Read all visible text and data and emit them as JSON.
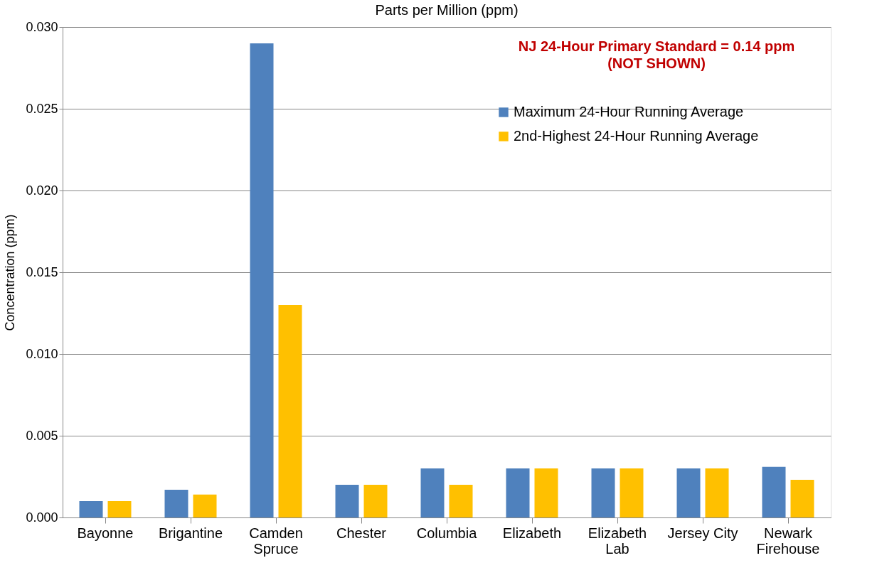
{
  "chart_data": {
    "type": "bar",
    "title": "Parts per Million (ppm)",
    "ylabel": "Concentration (ppm)",
    "categories": [
      "Bayonne",
      "Brigantine",
      "Camden\nSpruce",
      "Chester",
      "Columbia",
      "Elizabeth",
      "Elizabeth\nLab",
      "Jersey City",
      "Newark\nFirehouse"
    ],
    "series": [
      {
        "name": "Maximum 24-Hour Running Average",
        "color": "#4f81bd",
        "values": [
          0.001,
          0.0017,
          0.029,
          0.002,
          0.003,
          0.003,
          0.003,
          0.003,
          0.0031
        ]
      },
      {
        "name": "2nd-Highest 24-Hour Running Average",
        "color": "#ffc000",
        "values": [
          0.001,
          0.0014,
          0.013,
          0.002,
          0.002,
          0.003,
          0.003,
          0.003,
          0.0023
        ]
      }
    ],
    "ylim": [
      0,
      0.03
    ],
    "yticks": [
      {
        "value": 0,
        "label": "0.000"
      },
      0.005,
      {
        "value": 0.01,
        "label": "0.010"
      },
      0.015,
      {
        "value": 0.02,
        "label": "0.020"
      },
      0.025,
      {
        "value": 0.03,
        "label": "0.030"
      }
    ],
    "annotations": [
      "NJ 24-Hour Primary Standard = 0.14 ppm\n(NOT SHOWN)"
    ],
    "grid": "y",
    "legend": "top right"
  }
}
